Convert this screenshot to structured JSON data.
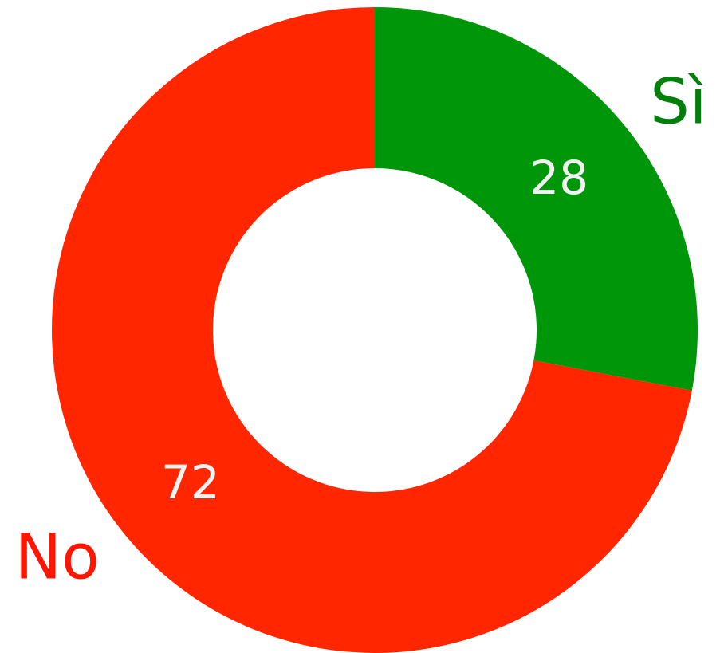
{
  "chart_data": {
    "type": "pie",
    "variant": "donut",
    "title": "",
    "legend": "none",
    "start_angle": "12 o'clock",
    "direction": "clockwise",
    "slices": [
      {
        "label": "Sì",
        "value": 28,
        "color": "#00960a",
        "label_color": "#00800a"
      },
      {
        "label": "No",
        "value": 72,
        "color": "#ff2600",
        "label_color": "#ff1500"
      }
    ]
  }
}
